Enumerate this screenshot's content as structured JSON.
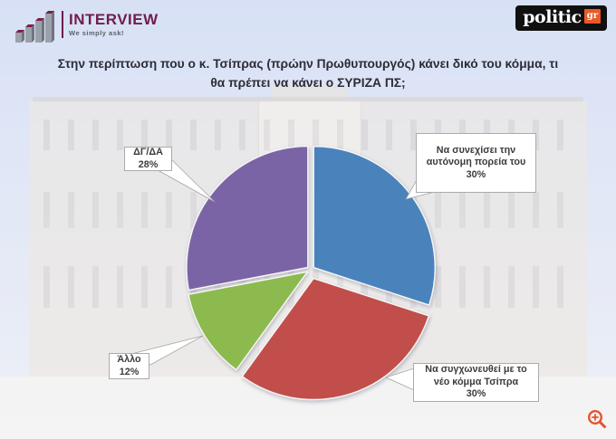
{
  "header": {
    "interview": {
      "name": "INTERVIEW",
      "tagline": "We simply ask!"
    },
    "politic": {
      "name": "politic",
      "tld": "gr"
    }
  },
  "title": "Στην περίπτωση που ο κ. Τσίπρας (πρώην Πρωθυπουργός) κάνει δικό του κόμμα, τι\nθα πρέπει να κάνει ο ΣΥΡΙΖΑ ΠΣ;",
  "chart_data": {
    "type": "pie",
    "title": "Στην περίπτωση που ο κ. Τσίπρας (πρώην Πρωθυπουργός) κάνει δικό του κόμμα, τι θα πρέπει να κάνει ο ΣΥΡΙΖΑ ΠΣ;",
    "unit": "%",
    "direction": "clockwise",
    "start_angle_deg": 0,
    "slices": [
      {
        "key": "autonomous-course",
        "label": "Να συνεχίσει την αυτόνομη πορεία του",
        "value": 30,
        "color": "#4a82bc"
      },
      {
        "key": "merge-with-tsipras-party",
        "label": "Να συγχωνευθεί με το νέο κόμμα Τσίπρα",
        "value": 30,
        "color": "#c14e4a"
      },
      {
        "key": "other",
        "label": "Άλλο",
        "value": 12,
        "color": "#8cba4f"
      },
      {
        "key": "dk-na",
        "label": "ΔΓ/ΔΑ",
        "value": 28,
        "color": "#7b64a6"
      }
    ],
    "callouts": [
      {
        "key": "autonomous-course",
        "text": "Να συνεχίσει την\nαυτόνομη πορεία του\n30%"
      },
      {
        "key": "merge-with-tsipras-party",
        "text": "Να συγχωνευθεί με το\nνέο κόμμα Τσίπρα\n30%"
      },
      {
        "key": "other",
        "text": "Άλλο\n12%"
      },
      {
        "key": "dk-na",
        "text": "ΔΓ/ΔΑ\n28%"
      }
    ],
    "legend": "callout-labels",
    "layout": {
      "center": [
        343,
        298
      ],
      "radius": 134,
      "explode": [
        4,
        10,
        4,
        4
      ]
    }
  },
  "icons": {
    "zoom": "zoom-in-magnifier",
    "logo_bars": "ascending-3d-bar-chart"
  },
  "colors": {
    "accent_orange": "#e8512e",
    "logo_maroon": "#701d4a",
    "politic_orange": "#ea5a28",
    "title_text": "#2c2c35"
  }
}
